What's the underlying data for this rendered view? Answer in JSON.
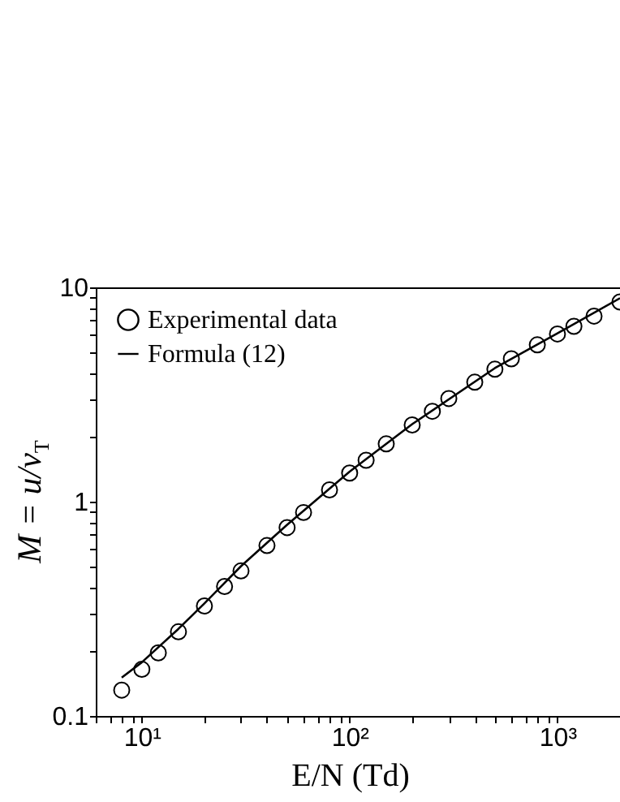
{
  "chart_data": {
    "type": "scatter",
    "xlabel": "E/N (Td)",
    "ylabel": "M = u/v$_{T}$",
    "log": "xy",
    "grid": false,
    "legend": "top left",
    "xlim": [
      6,
      2000
    ],
    "ylim": [
      0.1,
      10
    ],
    "xticks": [
      {
        "value": 6,
        "label": null
      },
      {
        "value": 7,
        "label": null
      },
      {
        "value": 8,
        "label": null
      },
      {
        "value": 9,
        "label": null
      },
      {
        "value": 10,
        "label": "10¹"
      },
      {
        "value": 20,
        "label": null
      },
      {
        "value": 30,
        "label": null
      },
      {
        "value": 40,
        "label": null
      },
      {
        "value": 50,
        "label": null
      },
      {
        "value": 60,
        "label": null
      },
      {
        "value": 70,
        "label": null
      },
      {
        "value": 80,
        "label": null
      },
      {
        "value": 90,
        "label": null
      },
      {
        "value": 100,
        "label": "10²"
      },
      {
        "value": 200,
        "label": null
      },
      {
        "value": 300,
        "label": null
      },
      {
        "value": 400,
        "label": null
      },
      {
        "value": 500,
        "label": null
      },
      {
        "value": 600,
        "label": null
      },
      {
        "value": 700,
        "label": null
      },
      {
        "value": 800,
        "label": null
      },
      {
        "value": 900,
        "label": null
      },
      {
        "value": 1000,
        "label": "10³"
      },
      {
        "value": 2000,
        "label": null
      }
    ],
    "yticks": [
      0.1,
      {
        "value": 0.2,
        "label": null
      },
      {
        "value": 0.3,
        "label": null
      },
      {
        "value": 0.4,
        "label": null
      },
      {
        "value": 0.5,
        "label": null
      },
      {
        "value": 0.6,
        "label": null
      },
      {
        "value": 0.7,
        "label": null
      },
      {
        "value": 0.8,
        "label": null
      },
      {
        "value": 0.9,
        "label": null
      },
      1,
      {
        "value": 2,
        "label": null
      },
      {
        "value": 3,
        "label": null
      },
      {
        "value": 4,
        "label": null
      },
      {
        "value": 5,
        "label": null
      },
      {
        "value": 6,
        "label": null
      },
      {
        "value": 7,
        "label": null
      },
      {
        "value": 8,
        "label": null
      },
      {
        "value": 9,
        "label": null
      },
      10
    ],
    "series": [
      {
        "name": "Experimental data",
        "marker": "circle",
        "color": "#000000",
        "x": [
          8,
          10,
          12,
          15,
          20,
          25,
          30,
          40,
          50,
          60,
          80,
          100,
          120,
          150,
          200,
          250,
          300,
          400,
          500,
          600,
          800,
          1000,
          1200,
          1500,
          2000
        ],
        "values": [
          0.132,
          0.165,
          0.197,
          0.247,
          0.326,
          0.402,
          0.475,
          0.624,
          0.757,
          0.89,
          1.135,
          1.36,
          1.56,
          1.86,
          2.28,
          2.64,
          3.03,
          3.61,
          4.15,
          4.64,
          5.39,
          6.06,
          6.58,
          7.34,
          8.55
        ]
      },
      {
        "name": "Formula (12)",
        "type": "line",
        "marker": "none",
        "line_style": "solid",
        "color": "#000000",
        "x": [
          8,
          10,
          15,
          20,
          30,
          50,
          80,
          100,
          200,
          500,
          1000,
          2000
        ],
        "values": [
          0.151,
          0.178,
          0.255,
          0.335,
          0.5,
          0.78,
          1.15,
          1.38,
          2.3,
          4.2,
          6.1,
          8.9
        ]
      }
    ]
  }
}
